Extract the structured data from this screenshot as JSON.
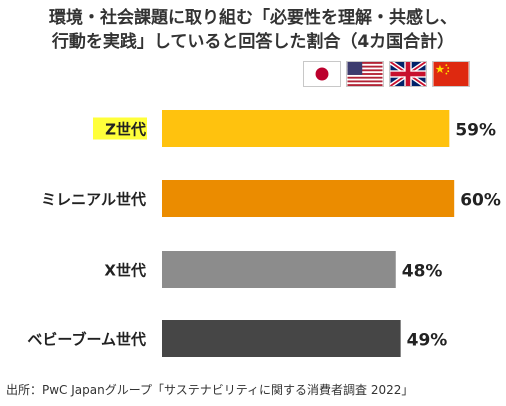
{
  "title_lines": [
    "環境・社会課題に取り組む「必要性を理解・共感し、",
    "行動を実践」していると回答した割合（4カ国合計）"
  ],
  "flags": [
    "japan-flag-icon",
    "usa-flag-icon",
    "uk-flag-icon",
    "china-flag-icon"
  ],
  "source": "出所：PwC Japanグループ「サステナビリティに関する消費者調査 2022」",
  "chart_data": {
    "type": "bar",
    "orientation": "horizontal",
    "categories": [
      "Z世代",
      "ミレニアル世代",
      "X世代",
      "ベビーブーム世代"
    ],
    "values": [
      59,
      60,
      48,
      49
    ],
    "value_labels": [
      "59%",
      "60%",
      "48%",
      "49%"
    ],
    "unit": "%",
    "colors": [
      "#FFC20E",
      "#EB8C00",
      "#8C8C8C",
      "#464646"
    ],
    "highlight_category": "Z世代",
    "highlight_color": "#FFFF3A",
    "grid": false,
    "legend": "none"
  }
}
